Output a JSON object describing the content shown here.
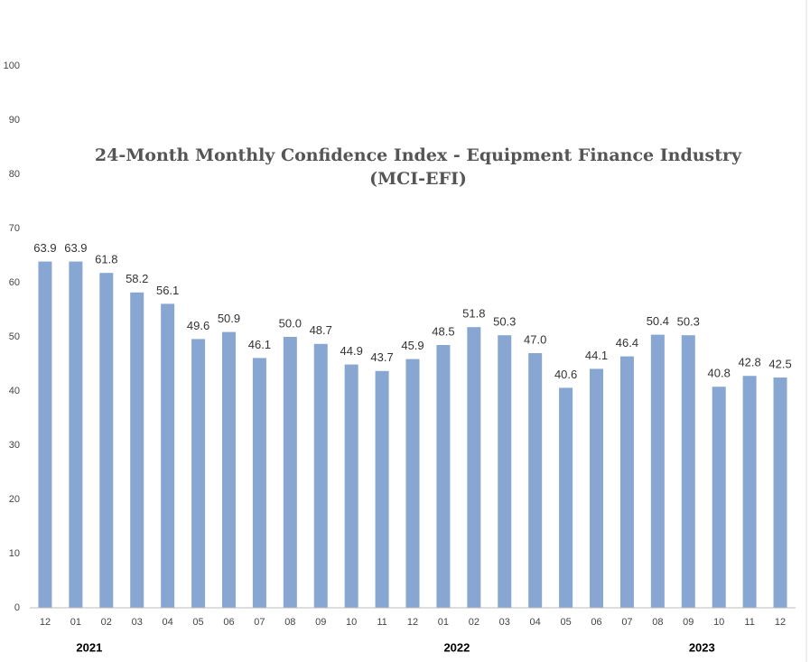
{
  "chart_data": {
    "type": "bar",
    "title": "24-Month Monthly Confidence Index - Equipment Finance Industry",
    "subtitle": "(MCI-EFI)",
    "categories": [
      "12",
      "01",
      "02",
      "03",
      "04",
      "05",
      "06",
      "07",
      "08",
      "09",
      "10",
      "11",
      "12",
      "01",
      "02",
      "03",
      "04",
      "05",
      "06",
      "07",
      "08",
      "09",
      "10",
      "11",
      "12"
    ],
    "years": [
      null,
      "2021",
      null,
      null,
      null,
      null,
      null,
      null,
      null,
      null,
      null,
      null,
      null,
      "2022",
      null,
      null,
      null,
      null,
      null,
      null,
      null,
      "2023",
      null,
      null,
      null
    ],
    "values": [
      63.9,
      63.9,
      61.8,
      58.2,
      56.1,
      49.6,
      50.9,
      46.1,
      50.0,
      48.7,
      44.9,
      43.7,
      45.9,
      48.5,
      51.8,
      50.3,
      47.0,
      40.6,
      44.1,
      46.4,
      50.4,
      50.3,
      40.8,
      42.8,
      42.5
    ],
    "value_labels": [
      "63.9",
      "63.9",
      "61.8",
      "58.2",
      "56.1",
      "49.6",
      "50.9",
      "46.1",
      "50.0",
      "48.7",
      "44.9",
      "43.7",
      "45.9",
      "48.5",
      "51.8",
      "50.3",
      "47.0",
      "40.6",
      "44.1",
      "46.4",
      "50.4",
      "50.3",
      "40.8",
      "42.8",
      "42.5"
    ],
    "color": "#87a6d2",
    "ylim": [
      0,
      100
    ],
    "yticks": [
      0,
      10,
      20,
      30,
      40,
      50,
      60,
      70,
      80,
      90,
      100
    ],
    "grid": false
  }
}
